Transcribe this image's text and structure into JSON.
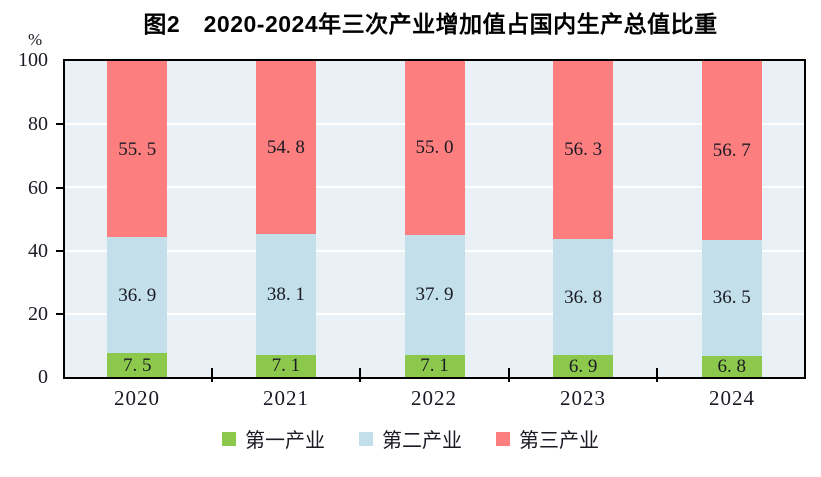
{
  "title": "图2　2020-2024年三次产业增加值占国内生产总值比重",
  "y_axis": {
    "unit": "%",
    "ticks": [
      "100",
      "80",
      "60",
      "40",
      "20",
      "0"
    ]
  },
  "chart_data": {
    "type": "bar",
    "stacked": true,
    "title": "图2　2020-2024年三次产业增加值占国内生产总值比重",
    "xlabel": "",
    "ylabel": "%",
    "ylim": [
      0,
      100
    ],
    "grid": true,
    "grid_color": "#ffffff",
    "plot_background": "#e9f1f6",
    "legend_position": "bottom",
    "categories": [
      "2020",
      "2021",
      "2022",
      "2023",
      "2024"
    ],
    "series": [
      {
        "name": "第一产业",
        "color": "#8cc84b",
        "values": [
          7.5,
          7.1,
          7.1,
          6.9,
          6.8
        ],
        "labels": [
          "7. 5",
          "7. 1",
          "7. 1",
          "6. 9",
          "6. 8"
        ]
      },
      {
        "name": "第二产业",
        "color": "#c3dfea",
        "values": [
          36.9,
          38.1,
          37.9,
          36.8,
          36.5
        ],
        "labels": [
          "36. 9",
          "38. 1",
          "37. 9",
          "36. 8",
          "36. 5"
        ]
      },
      {
        "name": "第三产业",
        "color": "#fc7e7e",
        "values": [
          55.5,
          54.8,
          55.0,
          56.3,
          56.7
        ],
        "labels": [
          "55. 5",
          "54. 8",
          "55. 0",
          "56. 3",
          "56. 7"
        ]
      }
    ]
  },
  "legend": {
    "items": [
      {
        "label": "第一产业",
        "color": "#8cc84b"
      },
      {
        "label": "第二产业",
        "color": "#c3dfea"
      },
      {
        "label": "第三产业",
        "color": "#fc7e7e"
      }
    ]
  }
}
